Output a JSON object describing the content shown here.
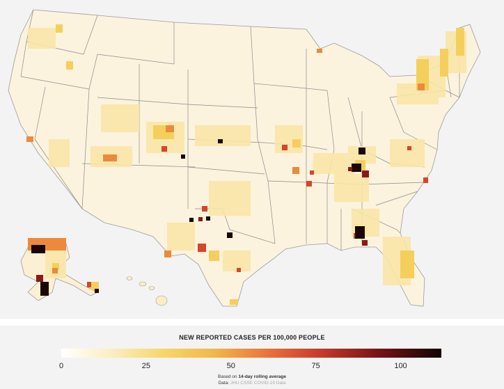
{
  "legend": {
    "title": "NEW REPORTED CASES PER 100,000 PEOPLE",
    "ticks": [
      "0",
      "25",
      "50",
      "75",
      "100"
    ],
    "scale_min": 0,
    "scale_max": 112,
    "note_prefix": "Based on ",
    "note_bold": "14-day rolling average",
    "source_prefix": "Data: ",
    "source_name": "JHU CSSE COVID-19 Data"
  },
  "colors": {
    "background": "#f3f3f3",
    "state_border": "#8a8a8a",
    "level_0": "#ffffff",
    "level_10": "#fbeec4",
    "level_25": "#f6d66a",
    "level_40": "#f2b84b",
    "level_55": "#e8703a",
    "level_70": "#c83a2a",
    "level_90": "#7a1416",
    "level_max": "#120404"
  }
}
